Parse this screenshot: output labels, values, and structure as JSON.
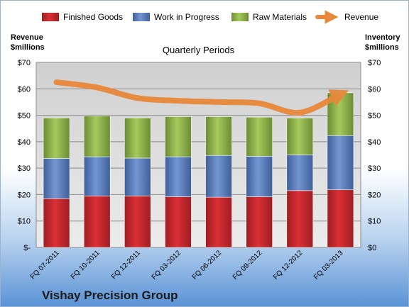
{
  "chart_data": {
    "type": "bar",
    "stacked": true,
    "title": "Vishay Precision Group",
    "subtitle": "Quarterly Periods",
    "ylabel_left": "Revenue $millions",
    "ylabel_right": "Inventory $millions",
    "categories": [
      "FQ 07-2011",
      "FQ 10-2011",
      "FQ 12-2011",
      "FQ 03-2012",
      "FQ 06-2012",
      "FQ 09-2012",
      "FQ 12-2012",
      "FQ 03-2013"
    ],
    "left_ticks": [
      "$-",
      "$10",
      "$20",
      "$30",
      "$40",
      "$50",
      "$60",
      "$70"
    ],
    "right_ticks": [
      "$0",
      "$10",
      "$20",
      "$30",
      "$40",
      "$50",
      "$60",
      "$70"
    ],
    "ylim": [
      0,
      70
    ],
    "legend_position": "top",
    "grid": true,
    "series": [
      {
        "name": "Finished Goods",
        "values": [
          18.5,
          19.5,
          19.5,
          19.2,
          19.0,
          19.2,
          21.5,
          21.8
        ],
        "color": "#c0282d"
      },
      {
        "name": "Work in Progress",
        "values": [
          15.2,
          14.8,
          14.3,
          15.1,
          15.8,
          15.3,
          13.5,
          20.5
        ],
        "color": "#5b7fbe"
      },
      {
        "name": "Raw Materials",
        "values": [
          15.3,
          15.5,
          15.2,
          15.2,
          14.7,
          14.8,
          14.0,
          16.2
        ],
        "color": "#8eb24a"
      }
    ],
    "line_series": {
      "name": "Revenue",
      "values": [
        62.5,
        60.5,
        56.5,
        55.5,
        55.0,
        54.5,
        51.0,
        58.0
      ],
      "color": "#e8883a"
    }
  }
}
